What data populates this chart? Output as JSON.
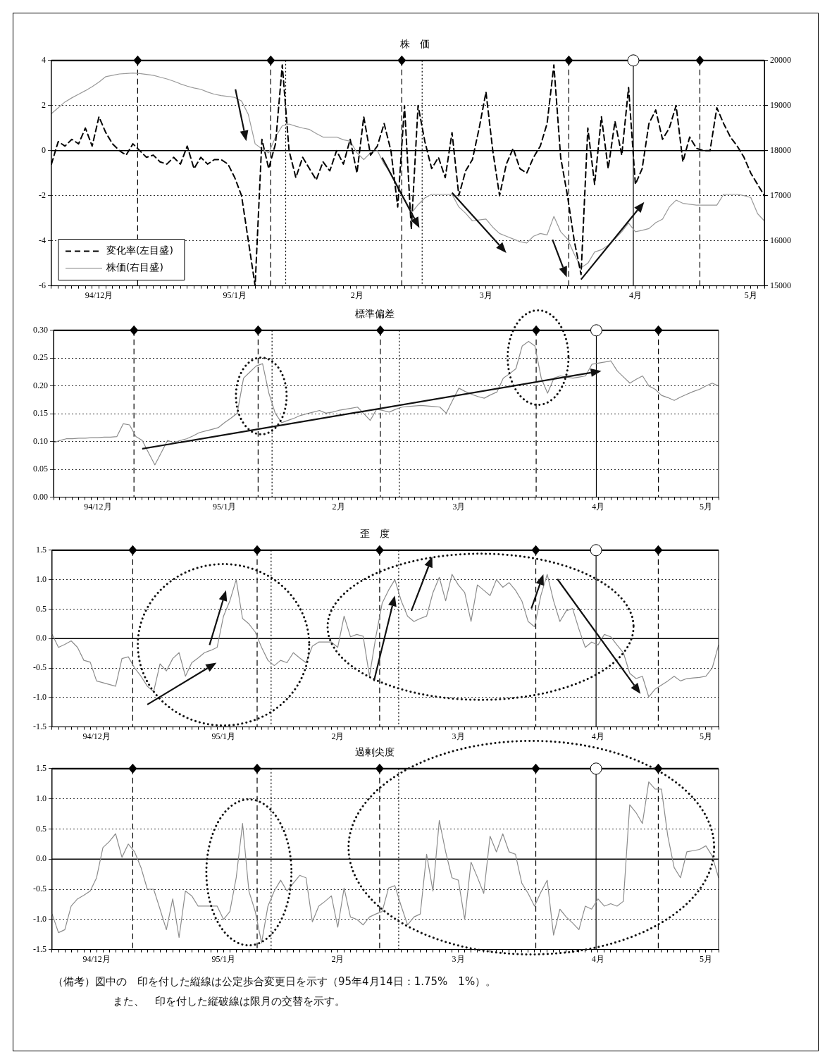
{
  "chart_data": [
    {
      "type": "line",
      "title": "株　価",
      "categories": [
        null,
        null,
        null,
        null,
        null,
        null,
        null,
        "94/12月",
        null,
        null,
        null,
        null,
        null,
        null,
        null,
        null,
        null,
        null,
        null,
        null,
        null,
        null,
        null,
        null,
        null,
        null,
        null,
        "95/1月",
        null,
        null,
        null,
        null,
        null,
        null,
        null,
        null,
        null,
        null,
        null,
        null,
        null,
        null,
        null,
        null,
        null,
        "2月",
        null,
        null,
        null,
        null,
        null,
        null,
        null,
        null,
        null,
        null,
        null,
        null,
        null,
        null,
        null,
        null,
        null,
        null,
        "3月",
        null,
        null,
        null,
        null,
        null,
        null,
        null,
        null,
        null,
        null,
        null,
        null,
        null,
        null,
        null,
        null,
        null,
        null,
        null,
        null,
        null,
        "4月",
        null,
        null,
        null,
        null,
        null,
        null,
        null,
        null,
        null,
        null,
        null,
        null,
        null,
        null,
        null,
        null,
        "5月",
        null,
        null
      ],
      "series": [
        {
          "name": "変化率(左目盛)",
          "color": "#000000",
          "line_style": "dashed",
          "values": [
            -0.6,
            0.4,
            0.2,
            0.5,
            0.3,
            1.0,
            0.2,
            1.5,
            0.8,
            0.3,
            0.0,
            -0.2,
            0.3,
            0.0,
            -0.3,
            -0.2,
            -0.5,
            -0.6,
            -0.3,
            -0.6,
            0.2,
            -0.8,
            -0.3,
            -0.6,
            -0.4,
            -0.4,
            -0.6,
            -1.2,
            -2.0,
            -4.0,
            -6.0,
            0.5,
            -0.8,
            0.3,
            3.8,
            0.0,
            -1.2,
            -0.3,
            -0.8,
            -1.3,
            -0.5,
            -0.9,
            0.0,
            -0.6,
            0.5,
            -1.0,
            1.5,
            -0.2,
            0.2,
            1.2,
            0.0,
            -2.5,
            2.0,
            -3.5,
            2.0,
            0.4,
            -0.8,
            -0.3,
            -1.2,
            0.8,
            -2.0,
            -0.9,
            -0.4,
            1.0,
            2.6,
            0.0,
            -2.0,
            -0.6,
            0.1,
            -0.8,
            -1.0,
            -0.3,
            0.2,
            1.2,
            3.8,
            -0.3,
            -2.0,
            -4.0,
            -5.5,
            1.0,
            -1.5,
            1.5,
            -0.8,
            1.3,
            -0.2,
            2.8,
            -1.5,
            -0.8,
            1.2,
            1.8,
            0.5,
            1.0,
            2.0,
            -0.5,
            0.6,
            0.1,
            0.0,
            0.0,
            1.9,
            1.2,
            0.6,
            0.2,
            -0.3,
            -1.0,
            -1.5,
            -2.0
          ]
        },
        {
          "name": "株価(右目盛)",
          "color": "#999999",
          "line_style": "solid",
          "axis": "y2",
          "values": [
            18820,
            18950,
            19080,
            19170,
            19250,
            19330,
            19420,
            19520,
            19640,
            19670,
            19700,
            19710,
            19720,
            19710,
            19690,
            19670,
            19630,
            19590,
            19540,
            19480,
            19430,
            19390,
            19360,
            19300,
            19250,
            19220,
            19200,
            19180,
            19100,
            18800,
            18150,
            18040,
            17950,
            18300,
            18550,
            18590,
            18540,
            18500,
            18470,
            18380,
            18300,
            18300,
            18300,
            18240,
            18210,
            17950,
            17800,
            17950,
            18000,
            17700,
            17500,
            17150,
            16900,
            16610,
            16800,
            16950,
            17030,
            17030,
            17030,
            17030,
            16750,
            16610,
            16440,
            16460,
            16480,
            16300,
            16160,
            16100,
            16040,
            15980,
            15950,
            16100,
            16160,
            16130,
            16540,
            16200,
            16040,
            15700,
            15400,
            15500,
            15750,
            15800,
            15900,
            16040,
            16200,
            16390,
            16200,
            16230,
            16270,
            16400,
            16480,
            16750,
            16900,
            16830,
            16810,
            16790,
            16790,
            16790,
            16790,
            17030,
            17030,
            17030,
            17000,
            16960,
            16600,
            16440
          ]
        }
      ],
      "ylim": [
        -6,
        4
      ],
      "yticks": [
        -6,
        -4,
        -2,
        0,
        2,
        4
      ],
      "y2lim": [
        15000,
        20000
      ],
      "y2ticks": [
        15000,
        16000,
        17000,
        18000,
        19000,
        20000
      ],
      "grid": "y",
      "legend": "bottom left",
      "ref_lines": [
        {
          "axis": "y",
          "value": 0,
          "line_style": "solid",
          "color": "#000000"
        }
      ]
    },
    {
      "type": "line",
      "title": "標準偏差",
      "color": "#8c8c8c",
      "categories": [
        null,
        null,
        null,
        null,
        null,
        null,
        null,
        "94/12月",
        null,
        null,
        null,
        null,
        null,
        null,
        null,
        null,
        null,
        null,
        null,
        null,
        null,
        null,
        null,
        null,
        null,
        null,
        null,
        "95/1月",
        null,
        null,
        null,
        null,
        null,
        null,
        null,
        null,
        null,
        null,
        null,
        null,
        null,
        null,
        null,
        null,
        null,
        "2月",
        null,
        null,
        null,
        null,
        null,
        null,
        null,
        null,
        null,
        null,
        null,
        null,
        null,
        null,
        null,
        null,
        null,
        null,
        "3月",
        null,
        null,
        null,
        null,
        null,
        null,
        null,
        null,
        null,
        null,
        null,
        null,
        null,
        null,
        null,
        null,
        null,
        null,
        null,
        null,
        null,
        "4月",
        null,
        null,
        null,
        null,
        null,
        null,
        null,
        null,
        null,
        null,
        null,
        null,
        null,
        null,
        null,
        null,
        "5月",
        null,
        null
      ],
      "values": [
        0.098,
        0.102,
        0.105,
        0.105,
        0.106,
        0.106,
        0.107,
        0.107,
        0.108,
        0.108,
        0.109,
        0.132,
        0.13,
        0.109,
        0.102,
        0.08,
        0.058,
        0.08,
        0.102,
        0.098,
        0.102,
        0.105,
        0.11,
        0.116,
        0.119,
        0.122,
        0.125,
        0.134,
        0.142,
        0.151,
        0.214,
        0.225,
        0.236,
        0.24,
        0.187,
        0.151,
        0.134,
        0.138,
        0.142,
        0.147,
        0.15,
        0.153,
        0.156,
        0.151,
        0.153,
        0.156,
        0.158,
        0.16,
        0.162,
        0.15,
        0.138,
        0.158,
        0.156,
        0.153,
        0.158,
        0.162,
        0.163,
        0.164,
        0.165,
        0.164,
        0.163,
        0.162,
        0.151,
        0.174,
        0.196,
        0.19,
        0.185,
        0.181,
        0.178,
        0.184,
        0.189,
        0.214,
        0.222,
        0.231,
        0.272,
        0.28,
        0.272,
        0.214,
        0.187,
        0.214,
        0.218,
        0.216,
        0.214,
        0.216,
        0.218,
        0.239,
        0.241,
        0.243,
        0.245,
        0.227,
        0.216,
        0.205,
        0.212,
        0.218,
        0.2,
        0.194,
        0.183,
        0.179,
        0.174,
        0.18,
        0.185,
        0.19,
        0.194,
        0.2,
        0.205,
        0.2
      ],
      "ylim": [
        0,
        0.3
      ],
      "yticks": [
        {
          "value": 0,
          "label": "0.00"
        },
        {
          "value": 0.05,
          "label": "0.05"
        },
        {
          "value": 0.1,
          "label": "0.10"
        },
        {
          "value": 0.15,
          "label": "0.15"
        },
        {
          "value": 0.2,
          "label": "0.20"
        },
        {
          "value": 0.25,
          "label": "0.25"
        },
        {
          "value": 0.3,
          "label": "0.30"
        }
      ],
      "grid": "y"
    },
    {
      "type": "line",
      "title": "歪　度",
      "color": "#8c8c8c",
      "categories": [
        null,
        null,
        null,
        null,
        null,
        null,
        null,
        "94/12月",
        null,
        null,
        null,
        null,
        null,
        null,
        null,
        null,
        null,
        null,
        null,
        null,
        null,
        null,
        null,
        null,
        null,
        null,
        null,
        "95/1月",
        null,
        null,
        null,
        null,
        null,
        null,
        null,
        null,
        null,
        null,
        null,
        null,
        null,
        null,
        null,
        null,
        null,
        "2月",
        null,
        null,
        null,
        null,
        null,
        null,
        null,
        null,
        null,
        null,
        null,
        null,
        null,
        null,
        null,
        null,
        null,
        null,
        "3月",
        null,
        null,
        null,
        null,
        null,
        null,
        null,
        null,
        null,
        null,
        null,
        null,
        null,
        null,
        null,
        null,
        null,
        null,
        null,
        null,
        null,
        "4月",
        null,
        null,
        null,
        null,
        null,
        null,
        null,
        null,
        null,
        null,
        null,
        null,
        null,
        null,
        null,
        null,
        "5月",
        null,
        null
      ],
      "values": [
        0.07,
        -0.15,
        -0.1,
        -0.04,
        -0.15,
        -0.37,
        -0.4,
        -0.72,
        -0.75,
        -0.78,
        -0.81,
        -0.34,
        -0.31,
        -0.5,
        -0.64,
        -0.81,
        -0.9,
        -0.43,
        -0.55,
        -0.34,
        -0.24,
        -0.64,
        -0.41,
        -0.33,
        -0.24,
        -0.2,
        -0.15,
        0.38,
        0.64,
        1.0,
        0.34,
        0.25,
        0.11,
        -0.15,
        -0.37,
        -0.46,
        -0.37,
        -0.41,
        -0.24,
        -0.33,
        -0.41,
        -0.13,
        -0.06,
        -0.06,
        -0.06,
        -0.15,
        0.38,
        0.03,
        0.07,
        0.04,
        -0.64,
        0.03,
        0.6,
        0.82,
        1.0,
        0.64,
        0.38,
        0.29,
        0.34,
        0.38,
        0.78,
        1.04,
        0.64,
        1.09,
        0.91,
        0.78,
        0.29,
        0.91,
        0.82,
        0.73,
        1.0,
        0.87,
        0.95,
        0.82,
        0.64,
        0.29,
        0.2,
        0.73,
        1.09,
        0.64,
        0.29,
        0.47,
        0.51,
        0.16,
        -0.15,
        -0.06,
        -0.11,
        0.07,
        0.03,
        -0.11,
        -0.24,
        -0.59,
        -0.68,
        -0.64,
        -0.99,
        -0.86,
        -0.79,
        -0.72,
        -0.64,
        -0.72,
        -0.68,
        -0.67,
        -0.66,
        -0.64,
        -0.5,
        -0.11
      ],
      "ylim": [
        -1.5,
        1.5
      ],
      "yticks": [
        -1.5,
        {
          "value": -1,
          "label": "-1.0"
        },
        -0.5,
        {
          "value": 0,
          "label": "0.0"
        },
        0.5,
        {
          "value": 1,
          "label": "1.0"
        },
        1.5
      ],
      "grid": "y",
      "ref_lines": [
        {
          "axis": "y",
          "value": 0,
          "line_style": "solid",
          "color": "#000000"
        }
      ]
    },
    {
      "type": "line",
      "title": "過剰尖度",
      "color": "#8c8c8c",
      "categories": [
        null,
        null,
        null,
        null,
        null,
        null,
        null,
        "94/12月",
        null,
        null,
        null,
        null,
        null,
        null,
        null,
        null,
        null,
        null,
        null,
        null,
        null,
        null,
        null,
        null,
        null,
        null,
        null,
        "95/1月",
        null,
        null,
        null,
        null,
        null,
        null,
        null,
        null,
        null,
        null,
        null,
        null,
        null,
        null,
        null,
        null,
        null,
        "2月",
        null,
        null,
        null,
        null,
        null,
        null,
        null,
        null,
        null,
        null,
        null,
        null,
        null,
        null,
        null,
        null,
        null,
        null,
        "3月",
        null,
        null,
        null,
        null,
        null,
        null,
        null,
        null,
        null,
        null,
        null,
        null,
        null,
        null,
        null,
        null,
        null,
        null,
        null,
        null,
        null,
        "4月",
        null,
        null,
        null,
        null,
        null,
        null,
        null,
        null,
        null,
        null,
        null,
        null,
        null,
        null,
        null,
        null,
        "5月",
        null,
        null
      ],
      "values": [
        -0.91,
        -1.22,
        -1.17,
        -0.78,
        -0.66,
        -0.6,
        -0.53,
        -0.31,
        0.19,
        0.29,
        0.42,
        0.03,
        0.25,
        0.12,
        -0.14,
        -0.5,
        -0.5,
        -0.83,
        -1.17,
        -0.66,
        -1.3,
        -0.53,
        -0.61,
        -0.78,
        -0.78,
        -0.78,
        -0.78,
        -1.0,
        -0.87,
        -0.31,
        0.59,
        -0.53,
        -0.87,
        -1.39,
        -0.78,
        -0.53,
        -0.35,
        -0.53,
        -0.4,
        -0.27,
        -0.31,
        -1.04,
        -0.78,
        -0.7,
        -0.61,
        -1.13,
        -0.48,
        -0.96,
        -1.0,
        -1.09,
        -0.96,
        -0.91,
        -0.87,
        -0.48,
        -0.44,
        -0.78,
        -1.09,
        -0.96,
        -0.91,
        0.08,
        -0.53,
        0.64,
        0.12,
        -0.31,
        -0.35,
        -1.0,
        -0.05,
        -0.3,
        -0.57,
        0.38,
        0.12,
        0.42,
        0.12,
        0.08,
        -0.4,
        -0.57,
        -0.78,
        -0.55,
        -0.35,
        -1.26,
        -0.83,
        -0.96,
        -1.06,
        -1.17,
        -0.78,
        -0.83,
        -0.66,
        -0.78,
        -0.74,
        -0.78,
        -0.7,
        0.9,
        0.77,
        0.59,
        1.28,
        1.16,
        1.16,
        0.38,
        -0.14,
        -0.31,
        0.12,
        0.14,
        0.16,
        0.22,
        0.05,
        -0.31
      ],
      "ylim": [
        -1.5,
        1.5
      ],
      "yticks": [
        -1.5,
        {
          "value": -1,
          "label": "-1.0"
        },
        -0.5,
        {
          "value": 0,
          "label": "0.0"
        },
        0.5,
        {
          "value": 1,
          "label": "1.0"
        },
        1.5
      ],
      "grid": "y",
      "ref_lines": [
        {
          "axis": "y",
          "value": 0,
          "line_style": "solid",
          "color": "#000000"
        }
      ],
      "annotations": [
        "（備考）図中の　印を付した縦線は公定歩合変更日を示す（95年4月14日：1.75%　1%）。",
        "また、　印を付した縦破線は限月の交替を示す。"
      ]
    }
  ]
}
